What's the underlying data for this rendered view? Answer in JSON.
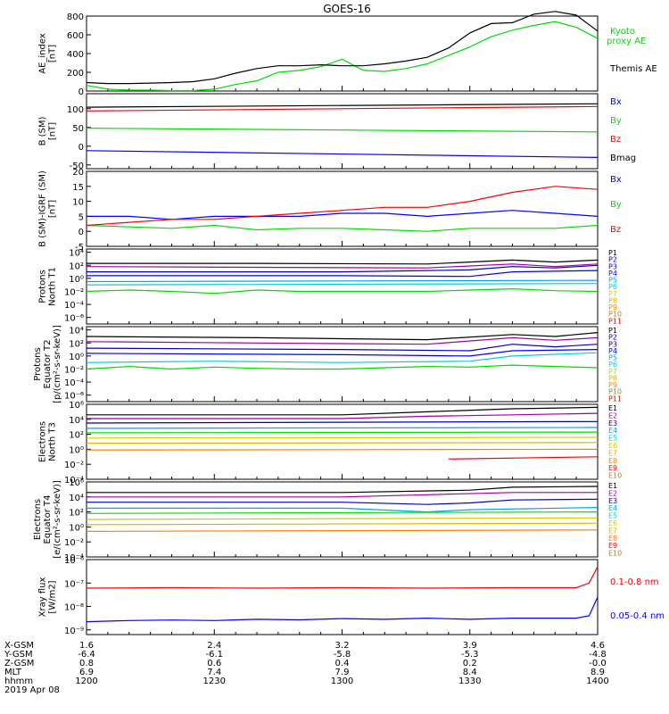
{
  "title": "GOES-16",
  "colors": {
    "black": "#000000",
    "green": "#00dd00",
    "blue": "#0000ff",
    "red": "#ff0000",
    "darkblue": "#0000aa",
    "purple": "#a000a0",
    "navy": "#0000cc",
    "lightblue": "#00a0ff",
    "cyan": "#00d0d0",
    "teal": "#00c080",
    "yellow": "#d0d000",
    "gold": "#e0b000",
    "orange": "#ff8000",
    "brown": "#b08000"
  },
  "chart_data": [
    {
      "type": "line",
      "id": "ae",
      "ylabel": [
        "AE_index",
        "[nT]"
      ],
      "ylim": [
        0,
        800
      ],
      "yticks": [
        "800",
        "600",
        "400",
        "200",
        "0"
      ],
      "series": [
        {
          "name": "Kyoto",
          "name2": "proxy AE",
          "color": "green",
          "x": [
            0,
            5,
            10,
            15,
            20,
            25,
            30,
            35,
            40,
            45,
            50,
            55,
            60,
            65,
            70,
            75,
            80,
            85,
            90,
            95,
            100,
            105,
            110,
            115,
            120
          ],
          "y": [
            60,
            20,
            10,
            10,
            5,
            5,
            20,
            70,
            110,
            200,
            220,
            260,
            340,
            220,
            210,
            240,
            290,
            380,
            470,
            580,
            650,
            700,
            740,
            680,
            560
          ]
        },
        {
          "name": "Themis AE",
          "color": "black",
          "x": [
            0,
            5,
            10,
            15,
            20,
            25,
            30,
            35,
            40,
            45,
            50,
            55,
            60,
            65,
            70,
            75,
            80,
            85,
            90,
            95,
            100,
            105,
            110,
            115,
            120
          ],
          "y": [
            90,
            80,
            80,
            85,
            90,
            100,
            130,
            190,
            240,
            270,
            270,
            280,
            270,
            270,
            290,
            320,
            360,
            460,
            620,
            720,
            730,
            820,
            850,
            810,
            640
          ]
        }
      ]
    },
    {
      "type": "line",
      "id": "bsm",
      "ylabel": [
        "B (SM)",
        "[nT]"
      ],
      "ylim": [
        -60,
        140
      ],
      "yticks": [
        "100",
        "50",
        "0",
        "-50"
      ],
      "series": [
        {
          "name": "Bx",
          "color": "blue",
          "x": [
            0,
            120
          ],
          "y": [
            -12,
            -30
          ]
        },
        {
          "name": "By",
          "color": "green",
          "x": [
            0,
            120
          ],
          "y": [
            48,
            38
          ]
        },
        {
          "name": "Bz",
          "color": "red",
          "x": [
            0,
            120
          ],
          "y": [
            94,
            106
          ]
        },
        {
          "name": "Bmag",
          "color": "black",
          "x": [
            0,
            120
          ],
          "y": [
            104,
            113
          ]
        }
      ]
    },
    {
      "type": "line",
      "id": "bigrf",
      "ylabel": [
        "B (SM)-IGRF (SM)",
        "[nT]"
      ],
      "ylim": [
        -5,
        20
      ],
      "yticks": [
        "20",
        "15",
        "10",
        "5",
        "0",
        "-5"
      ],
      "series": [
        {
          "name": "Bx",
          "color": "blue",
          "x": [
            0,
            10,
            20,
            30,
            40,
            50,
            60,
            70,
            80,
            90,
            100,
            110,
            120
          ],
          "y": [
            5,
            5,
            4,
            5,
            5,
            5,
            6,
            6,
            5,
            6,
            7,
            6,
            5
          ]
        },
        {
          "name": "By",
          "color": "green",
          "x": [
            0,
            10,
            20,
            30,
            40,
            50,
            60,
            70,
            80,
            90,
            100,
            110,
            120
          ],
          "y": [
            2,
            1.5,
            1,
            2,
            0.5,
            1,
            1,
            0.5,
            0,
            1,
            1,
            1,
            2
          ]
        },
        {
          "name": "Bz",
          "color": "red",
          "x": [
            0,
            10,
            20,
            30,
            40,
            50,
            60,
            70,
            80,
            90,
            100,
            110,
            120
          ],
          "y": [
            2,
            3,
            4,
            4,
            5,
            6,
            7,
            8,
            8,
            10,
            13,
            15,
            14
          ]
        }
      ]
    },
    {
      "type": "line",
      "id": "protonsT1",
      "ylabel": [
        "Protons",
        "North T1"
      ],
      "ylog": true,
      "ylim": [
        -7,
        4.5
      ],
      "yticks": [
        "10⁴",
        "10²",
        "10⁰",
        "10⁻²",
        "10⁻⁴",
        "10⁻⁶"
      ],
      "ytick_exp": [
        4,
        2,
        0,
        -2,
        -4,
        -6
      ],
      "legend": [
        "P1",
        "P2",
        "P3",
        "P4",
        "P5",
        "P6",
        "P7",
        "P8",
        "P9",
        "P10",
        "P11"
      ],
      "legend_colors": [
        "black",
        "navy",
        "darkblue",
        "blue",
        "lightblue",
        "cyan",
        "yellow",
        "gold",
        "orange",
        "brown",
        "red"
      ],
      "series": [
        {
          "name": "P1",
          "color": "black",
          "x": [
            0,
            40,
            80,
            100,
            110,
            120
          ],
          "y": [
            2.3,
            2.3,
            2.2,
            2.8,
            2.5,
            2.8
          ]
        },
        {
          "name": "P2",
          "color": "purple",
          "x": [
            0,
            40,
            80,
            100,
            110,
            120
          ],
          "y": [
            1.8,
            1.7,
            1.6,
            2.2,
            1.8,
            2.2
          ]
        },
        {
          "name": "P3",
          "color": "darkblue",
          "x": [
            0,
            60,
            90,
            100,
            110,
            120
          ],
          "y": [
            1.0,
            1.0,
            1.3,
            1.8,
            1.6,
            2.0
          ]
        },
        {
          "name": "P4",
          "color": "blue",
          "x": [
            0,
            60,
            90,
            100,
            120
          ],
          "y": [
            0.4,
            0.4,
            0.3,
            1.0,
            1.2
          ]
        },
        {
          "name": "P5",
          "color": "lightblue",
          "x": [
            0,
            120
          ],
          "y": [
            -0.5,
            -0.3
          ]
        },
        {
          "name": "P6",
          "color": "cyan",
          "x": [
            0,
            120
          ],
          "y": [
            -1.0,
            -0.8
          ]
        },
        {
          "name": "P7",
          "color": "green",
          "x": [
            0,
            10,
            20,
            30,
            40,
            50,
            60,
            70,
            80,
            90,
            100,
            110,
            120
          ],
          "y": [
            -2.0,
            -1.8,
            -2.0,
            -2.3,
            -1.8,
            -2.0,
            -2.0,
            -2.0,
            -2.0,
            -1.8,
            -1.6,
            -1.9,
            -2.0
          ]
        }
      ]
    },
    {
      "type": "line",
      "id": "protonsT2",
      "ylabel": [
        "Protons",
        "Equator T2",
        "[p/(cm²-s-sr-keV)]"
      ],
      "ylog": true,
      "ylim": [
        -7,
        4.5
      ],
      "yticks": [
        "10⁴",
        "10²",
        "10⁰",
        "10⁻²",
        "10⁻⁴",
        "10⁻⁶"
      ],
      "ytick_exp": [
        4,
        2,
        0,
        -2,
        -4,
        -6
      ],
      "legend": [
        "P1",
        "P2",
        "P3",
        "P4",
        "P5",
        "P6",
        "P7",
        "P8",
        "P9",
        "P10",
        "P11"
      ],
      "legend_colors": [
        "black",
        "navy",
        "darkblue",
        "blue",
        "lightblue",
        "cyan",
        "yellow",
        "gold",
        "orange",
        "brown",
        "red"
      ],
      "series": [
        {
          "name": "P1",
          "color": "black",
          "x": [
            0,
            40,
            80,
            100,
            110,
            120
          ],
          "y": [
            3.0,
            2.8,
            2.5,
            3.3,
            3.0,
            3.6
          ]
        },
        {
          "name": "P2",
          "color": "purple",
          "x": [
            0,
            40,
            80,
            100,
            110,
            120
          ],
          "y": [
            2.2,
            2.0,
            1.8,
            2.8,
            2.4,
            2.8
          ]
        },
        {
          "name": "P3",
          "color": "darkblue",
          "x": [
            0,
            60,
            90,
            100,
            110,
            120
          ],
          "y": [
            1.2,
            1.0,
            0.8,
            1.8,
            1.4,
            1.8
          ]
        },
        {
          "name": "P4",
          "color": "blue",
          "x": [
            0,
            60,
            90,
            100,
            120
          ],
          "y": [
            0.4,
            0.2,
            0.0,
            0.8,
            1.0
          ]
        },
        {
          "name": "P5",
          "color": "cyan",
          "x": [
            0,
            30,
            60,
            90,
            100,
            120
          ],
          "y": [
            -1.0,
            -0.8,
            -1.0,
            -0.8,
            0.0,
            0.5
          ]
        },
        {
          "name": "P6",
          "color": "green",
          "x": [
            0,
            10,
            20,
            30,
            40,
            50,
            60,
            70,
            80,
            90,
            100,
            110,
            120
          ],
          "y": [
            -2.0,
            -1.6,
            -2.0,
            -1.7,
            -1.9,
            -2.0,
            -2.0,
            -1.8,
            -1.6,
            -1.7,
            -1.4,
            -1.6,
            -1.8
          ]
        }
      ]
    },
    {
      "type": "line",
      "id": "electronsT3",
      "ylabel": [
        "Electrons",
        "North T3"
      ],
      "ylog": true,
      "ylim": [
        -4,
        6
      ],
      "yticks": [
        "10⁶",
        "10⁴",
        "10²",
        "10⁰",
        "10⁻²",
        "10⁻⁴"
      ],
      "ytick_exp": [
        6,
        4,
        2,
        0,
        -2,
        -4
      ],
      "legend": [
        "E1",
        "E2",
        "E3",
        "E4",
        "E5",
        "E6",
        "E7",
        "E8",
        "E9",
        "E10"
      ],
      "legend_colors": [
        "black",
        "purple",
        "darkblue",
        "lightblue",
        "cyan",
        "yellow",
        "gold",
        "orange",
        "red",
        "brown"
      ],
      "series": [
        {
          "name": "E1",
          "color": "black",
          "x": [
            0,
            60,
            80,
            100,
            120
          ],
          "y": [
            4.6,
            4.6,
            5.0,
            5.4,
            5.6
          ]
        },
        {
          "name": "E2",
          "color": "purple",
          "x": [
            0,
            60,
            80,
            100,
            120
          ],
          "y": [
            4.1,
            4.1,
            4.4,
            4.6,
            4.8
          ]
        },
        {
          "name": "E3",
          "color": "darkblue",
          "x": [
            0,
            120
          ],
          "y": [
            3.5,
            3.7
          ]
        },
        {
          "name": "E4",
          "color": "lightblue",
          "x": [
            0,
            120
          ],
          "y": [
            2.8,
            2.9
          ]
        },
        {
          "name": "E5",
          "color": "green",
          "x": [
            0,
            120
          ],
          "y": [
            2.2,
            2.3
          ]
        },
        {
          "name": "E6",
          "color": "yellow",
          "x": [
            0,
            120
          ],
          "y": [
            1.5,
            1.6
          ]
        },
        {
          "name": "E7",
          "color": "gold",
          "x": [
            0,
            120
          ],
          "y": [
            0.8,
            0.9
          ]
        },
        {
          "name": "E8",
          "color": "orange",
          "x": [
            0,
            120
          ],
          "y": [
            -0.1,
            0.0
          ]
        },
        {
          "name": "E9",
          "color": "red",
          "x": [
            85,
            120
          ],
          "y": [
            -1.3,
            -1.0
          ]
        }
      ]
    },
    {
      "type": "line",
      "id": "electronsT4",
      "ylabel": [
        "Electrons",
        "Equator T4",
        "[e/(cm²-s-sr-keV)]"
      ],
      "ylog": true,
      "ylim": [
        -4,
        6
      ],
      "yticks": [
        "10⁶",
        "10⁴",
        "10²",
        "10⁰",
        "10⁻²",
        "10⁻⁴"
      ],
      "ytick_exp": [
        6,
        4,
        2,
        0,
        -2,
        -4
      ],
      "legend": [
        "E1",
        "E2",
        "E3",
        "E4",
        "E5",
        "E6",
        "E7",
        "E8",
        "E9",
        "E10"
      ],
      "legend_colors": [
        "black",
        "purple",
        "darkblue",
        "lightblue",
        "cyan",
        "yellow",
        "gold",
        "orange",
        "red",
        "brown"
      ],
      "series": [
        {
          "name": "E1",
          "color": "black",
          "x": [
            0,
            60,
            90,
            100,
            120
          ],
          "y": [
            4.6,
            4.6,
            4.9,
            5.3,
            5.4
          ]
        },
        {
          "name": "E2",
          "color": "purple",
          "x": [
            0,
            60,
            80,
            100,
            120
          ],
          "y": [
            4.0,
            4.0,
            4.3,
            4.6,
            4.6
          ]
        },
        {
          "name": "E3",
          "color": "darkblue",
          "x": [
            0,
            60,
            80,
            90,
            100,
            120
          ],
          "y": [
            3.3,
            3.3,
            3.0,
            3.2,
            3.6,
            3.7
          ]
        },
        {
          "name": "E4",
          "color": "lightblue",
          "x": [
            0,
            60,
            80,
            90,
            120
          ],
          "y": [
            2.5,
            2.5,
            2.0,
            2.3,
            2.6
          ]
        },
        {
          "name": "E5",
          "color": "green",
          "x": [
            0,
            120
          ],
          "y": [
            1.8,
            2.0
          ]
        },
        {
          "name": "E6",
          "color": "yellow",
          "x": [
            0,
            120
          ],
          "y": [
            1.0,
            1.2
          ]
        },
        {
          "name": "E7",
          "color": "gold",
          "x": [
            0,
            120
          ],
          "y": [
            0.3,
            0.5
          ]
        },
        {
          "name": "E8",
          "color": "orange",
          "x": [
            0,
            120
          ],
          "y": [
            -0.6,
            -0.4
          ]
        }
      ]
    },
    {
      "type": "line",
      "id": "xray",
      "ylabel": [
        "Xray flux",
        "[W/m2]"
      ],
      "ylog": true,
      "ylim": [
        -9.2,
        -6
      ],
      "yticks": [
        "10⁻⁶",
        "10⁻⁷",
        "10⁻⁸",
        "10⁻⁹"
      ],
      "ytick_exp": [
        -6,
        -7,
        -8,
        -9
      ],
      "series": [
        {
          "name": "0.1-0.8 nm",
          "color": "red",
          "x": [
            0,
            20,
            40,
            60,
            80,
            100,
            115,
            118,
            120
          ],
          "y": [
            -7.22,
            -7.2,
            -7.22,
            -7.2,
            -7.22,
            -7.2,
            -7.2,
            -7.0,
            -6.3
          ]
        },
        {
          "name": "0.05-0.4 nm",
          "color": "blue",
          "x": [
            0,
            10,
            20,
            30,
            40,
            50,
            60,
            70,
            80,
            90,
            100,
            110,
            115,
            118,
            120
          ],
          "y": [
            -8.65,
            -8.6,
            -8.58,
            -8.6,
            -8.55,
            -8.57,
            -8.52,
            -8.55,
            -8.5,
            -8.55,
            -8.5,
            -8.5,
            -8.5,
            -8.4,
            -7.6
          ]
        }
      ]
    }
  ],
  "footer": {
    "row_labels": [
      "X-GSM",
      "Y-GSM",
      "Z-GSM",
      "MLT",
      "hhmm",
      "2019 Apr 08"
    ],
    "columns": [
      {
        "x": 0,
        "values": [
          "1.6",
          "-6.4",
          "0.8",
          "6.9",
          "1200"
        ]
      },
      {
        "x": 30,
        "values": [
          "2.4",
          "-6.1",
          "0.6",
          "7.4",
          "1230"
        ]
      },
      {
        "x": 60,
        "values": [
          "3.2",
          "-5.8",
          "0.4",
          "7.9",
          "1300"
        ]
      },
      {
        "x": 90,
        "values": [
          "3.9",
          "-5.3",
          "0.2",
          "8.4",
          "1330"
        ]
      },
      {
        "x": 120,
        "values": [
          "4.6",
          "-4.8",
          "-0.0",
          "8.9",
          "1400"
        ]
      }
    ]
  }
}
